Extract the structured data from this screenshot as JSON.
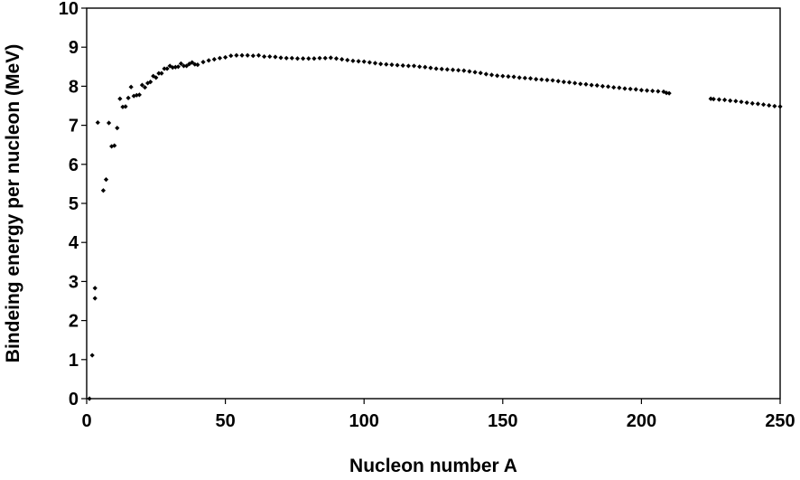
{
  "chart_data": {
    "type": "scatter",
    "title": "",
    "xlabel": "Nucleon number A",
    "ylabel": "Bindeing energy per nucleon (MeV)",
    "xlim": [
      0,
      250
    ],
    "ylim": [
      0,
      10
    ],
    "x_ticks": [
      "0",
      "50",
      "100",
      "150",
      "200",
      "250"
    ],
    "y_ticks": [
      "0",
      "1",
      "2",
      "3",
      "4",
      "5",
      "6",
      "7",
      "8",
      "9",
      "10"
    ],
    "grid": false,
    "legend": "none",
    "marker_color": "#000000",
    "series": [
      {
        "points": [
          [
            1,
            0.0
          ],
          [
            2,
            1.11
          ],
          [
            3,
            2.57
          ],
          [
            3,
            2.83
          ],
          [
            4,
            7.07
          ],
          [
            6,
            5.33
          ],
          [
            7,
            5.61
          ],
          [
            8,
            7.06
          ],
          [
            9,
            6.46
          ],
          [
            10,
            6.48
          ],
          [
            11,
            6.93
          ],
          [
            12,
            7.68
          ],
          [
            13,
            7.47
          ],
          [
            14,
            7.48
          ],
          [
            15,
            7.7
          ],
          [
            16,
            7.98
          ],
          [
            17,
            7.75
          ],
          [
            18,
            7.77
          ],
          [
            19,
            7.78
          ],
          [
            20,
            8.03
          ],
          [
            21,
            7.97
          ],
          [
            22,
            8.08
          ],
          [
            23,
            8.11
          ],
          [
            24,
            8.26
          ],
          [
            25,
            8.22
          ],
          [
            26,
            8.33
          ],
          [
            27,
            8.33
          ],
          [
            28,
            8.45
          ],
          [
            29,
            8.45
          ],
          [
            30,
            8.52
          ],
          [
            31,
            8.48
          ],
          [
            32,
            8.49
          ],
          [
            33,
            8.5
          ],
          [
            34,
            8.58
          ],
          [
            35,
            8.52
          ],
          [
            36,
            8.52
          ],
          [
            37,
            8.57
          ],
          [
            38,
            8.61
          ],
          [
            39,
            8.56
          ],
          [
            40,
            8.55
          ],
          [
            42,
            8.62
          ],
          [
            44,
            8.66
          ],
          [
            46,
            8.69
          ],
          [
            48,
            8.72
          ],
          [
            50,
            8.74
          ],
          [
            52,
            8.78
          ],
          [
            54,
            8.79
          ],
          [
            56,
            8.79
          ],
          [
            58,
            8.79
          ],
          [
            60,
            8.78
          ],
          [
            62,
            8.79
          ],
          [
            64,
            8.76
          ],
          [
            66,
            8.76
          ],
          [
            68,
            8.75
          ],
          [
            70,
            8.73
          ],
          [
            72,
            8.72
          ],
          [
            74,
            8.72
          ],
          [
            76,
            8.71
          ],
          [
            78,
            8.71
          ],
          [
            80,
            8.71
          ],
          [
            82,
            8.71
          ],
          [
            84,
            8.72
          ],
          [
            86,
            8.72
          ],
          [
            88,
            8.73
          ],
          [
            90,
            8.71
          ],
          [
            92,
            8.69
          ],
          [
            94,
            8.67
          ],
          [
            96,
            8.65
          ],
          [
            98,
            8.64
          ],
          [
            100,
            8.63
          ],
          [
            102,
            8.61
          ],
          [
            104,
            8.59
          ],
          [
            106,
            8.57
          ],
          [
            108,
            8.56
          ],
          [
            110,
            8.55
          ],
          [
            112,
            8.54
          ],
          [
            114,
            8.53
          ],
          [
            116,
            8.52
          ],
          [
            118,
            8.52
          ],
          [
            120,
            8.5
          ],
          [
            122,
            8.49
          ],
          [
            124,
            8.47
          ],
          [
            126,
            8.45
          ],
          [
            128,
            8.44
          ],
          [
            130,
            8.43
          ],
          [
            132,
            8.42
          ],
          [
            134,
            8.41
          ],
          [
            136,
            8.4
          ],
          [
            138,
            8.38
          ],
          [
            140,
            8.36
          ],
          [
            142,
            8.34
          ],
          [
            144,
            8.31
          ],
          [
            146,
            8.29
          ],
          [
            148,
            8.27
          ],
          [
            150,
            8.26
          ],
          [
            152,
            8.25
          ],
          [
            154,
            8.24
          ],
          [
            156,
            8.22
          ],
          [
            158,
            8.21
          ],
          [
            160,
            8.2
          ],
          [
            162,
            8.18
          ],
          [
            164,
            8.17
          ],
          [
            166,
            8.16
          ],
          [
            168,
            8.15
          ],
          [
            170,
            8.13
          ],
          [
            172,
            8.11
          ],
          [
            174,
            8.1
          ],
          [
            176,
            8.08
          ],
          [
            178,
            8.06
          ],
          [
            180,
            8.05
          ],
          [
            182,
            8.03
          ],
          [
            184,
            8.02
          ],
          [
            186,
            8.0
          ],
          [
            188,
            7.99
          ],
          [
            190,
            7.97
          ],
          [
            192,
            7.96
          ],
          [
            194,
            7.94
          ],
          [
            196,
            7.93
          ],
          [
            198,
            7.92
          ],
          [
            200,
            7.9
          ],
          [
            202,
            7.89
          ],
          [
            204,
            7.88
          ],
          [
            206,
            7.87
          ],
          [
            208,
            7.86
          ],
          [
            209,
            7.83
          ],
          [
            210,
            7.82
          ],
          [
            225,
            7.68
          ],
          [
            226,
            7.67
          ],
          [
            228,
            7.66
          ],
          [
            230,
            7.65
          ],
          [
            232,
            7.63
          ],
          [
            234,
            7.62
          ],
          [
            236,
            7.6
          ],
          [
            238,
            7.58
          ],
          [
            240,
            7.56
          ],
          [
            242,
            7.55
          ],
          [
            244,
            7.53
          ],
          [
            246,
            7.51
          ],
          [
            248,
            7.49
          ],
          [
            250,
            7.48
          ]
        ]
      }
    ]
  }
}
